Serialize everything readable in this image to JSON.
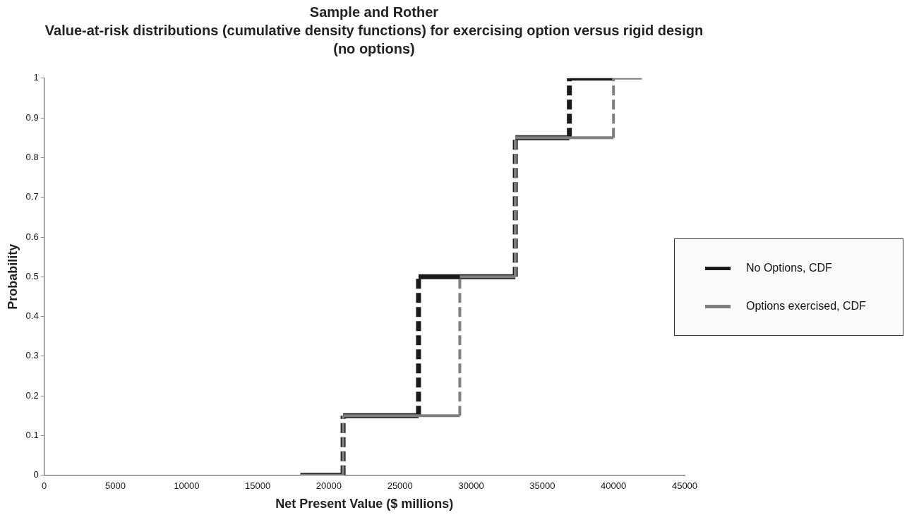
{
  "chart_data": {
    "type": "line",
    "title": "Sample and Rother",
    "subtitle": "Value-at-risk distributions (cumulative density functions) for exercising option versus rigid design (no options)",
    "xlabel": "Net Present Value ($ millions)",
    "ylabel": "Probability",
    "series": [
      {
        "name": "No Options, CDF",
        "color": "#1a1a1a",
        "x": [
          18000,
          21000,
          21000,
          26300,
          26300,
          33100,
          33100,
          36900,
          36900,
          40000
        ],
        "values": [
          0,
          0,
          0.15,
          0.15,
          0.5,
          0.5,
          0.85,
          0.85,
          1,
          1
        ]
      },
      {
        "name": "Options exercised, CDF",
        "color": "#7f7f7f",
        "x": [
          18000,
          21000,
          21000,
          29200,
          29200,
          33100,
          33100,
          40000,
          40000,
          42000
        ],
        "values": [
          0,
          0,
          0.15,
          0.15,
          0.5,
          0.5,
          0.85,
          0.85,
          1,
          1
        ]
      }
    ],
    "xlim": [
      0,
      45000
    ],
    "xticks": [
      0,
      5000,
      10000,
      15000,
      20000,
      25000,
      30000,
      35000,
      40000,
      45000
    ],
    "ylim": [
      0,
      1
    ],
    "yticks": [
      0,
      0.1,
      0.2,
      0.3,
      0.4,
      0.5,
      0.6,
      0.7,
      0.8,
      0.9,
      1
    ],
    "grid": false,
    "legend": "right",
    "marker": "none",
    "line_style": "dashed"
  }
}
